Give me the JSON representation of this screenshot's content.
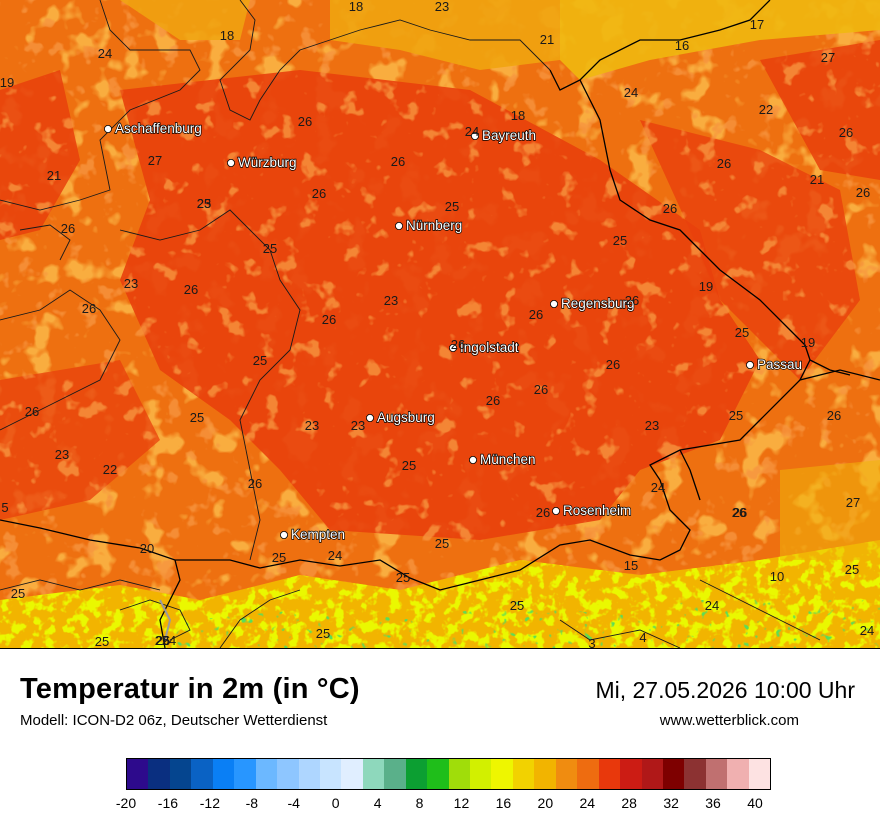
{
  "map": {
    "cities": [
      {
        "name": "Aschaffenburg"
      },
      {
        "name": "Würzburg"
      },
      {
        "name": "Bayreuth"
      },
      {
        "name": "Nürnberg"
      },
      {
        "name": "Regensburg"
      },
      {
        "name": "Ingolstadt"
      },
      {
        "name": "Passau"
      },
      {
        "name": "Augsburg"
      },
      {
        "name": "München"
      },
      {
        "name": "Rosenheim"
      },
      {
        "name": "Kempten"
      }
    ],
    "temperature_labels": [
      "18",
      "23",
      "17",
      "19",
      "24",
      "18",
      "21",
      "16",
      "27",
      "24",
      "22",
      "26",
      "26",
      "26",
      "21",
      "18",
      "21",
      "24",
      "25",
      "27",
      "25",
      "26",
      "23",
      "26",
      "26",
      "26",
      "25",
      "25",
      "23",
      "23",
      "26",
      "19",
      "26",
      "25",
      "26",
      "26",
      "25",
      "26",
      "26",
      "26",
      "23",
      "26",
      "25",
      "19",
      "26",
      "25",
      "25",
      "26",
      "25",
      "23",
      "23",
      "23",
      "22",
      "25",
      "26",
      "24",
      "27",
      "26",
      "26",
      "26",
      "26",
      "5",
      "26",
      "25",
      "20",
      "24",
      "25",
      "15",
      "25",
      "10",
      "25",
      "25",
      "25",
      "24",
      "24",
      "25",
      "26",
      "24",
      "3",
      "4"
    ]
  },
  "footer": {
    "title": "Temperatur in 2m (in °C)",
    "subtitle": "Modell: ICON-D2 06z, Deutscher Wetterdienst",
    "datetime": "Mi, 27.05.2026 10:00 Uhr",
    "website": "www.wetterblick.com"
  },
  "legend": {
    "colors": [
      "#2d0a8c",
      "#0a2f80",
      "#05458f",
      "#0a62c4",
      "#0a7ff5",
      "#2896ff",
      "#6cb8ff",
      "#8ec6ff",
      "#aed6ff",
      "#c8e4ff",
      "#e0eeff",
      "#8ed8bc",
      "#5ab08a",
      "#0c9f32",
      "#1fbe1a",
      "#a0dd0a",
      "#d2f000",
      "#eef600",
      "#f2d200",
      "#f2b400",
      "#f08c10",
      "#ee6c10",
      "#e8380c",
      "#cc1c14",
      "#b01818",
      "#7e0000",
      "#8c3232",
      "#c07070",
      "#f0b0b0",
      "#fde2e2"
    ],
    "ticks": [
      "-20",
      "-16",
      "-12",
      "-8",
      "-4",
      "0",
      "4",
      "8",
      "12",
      "16",
      "20",
      "24",
      "28",
      "32",
      "36",
      "40"
    ]
  }
}
